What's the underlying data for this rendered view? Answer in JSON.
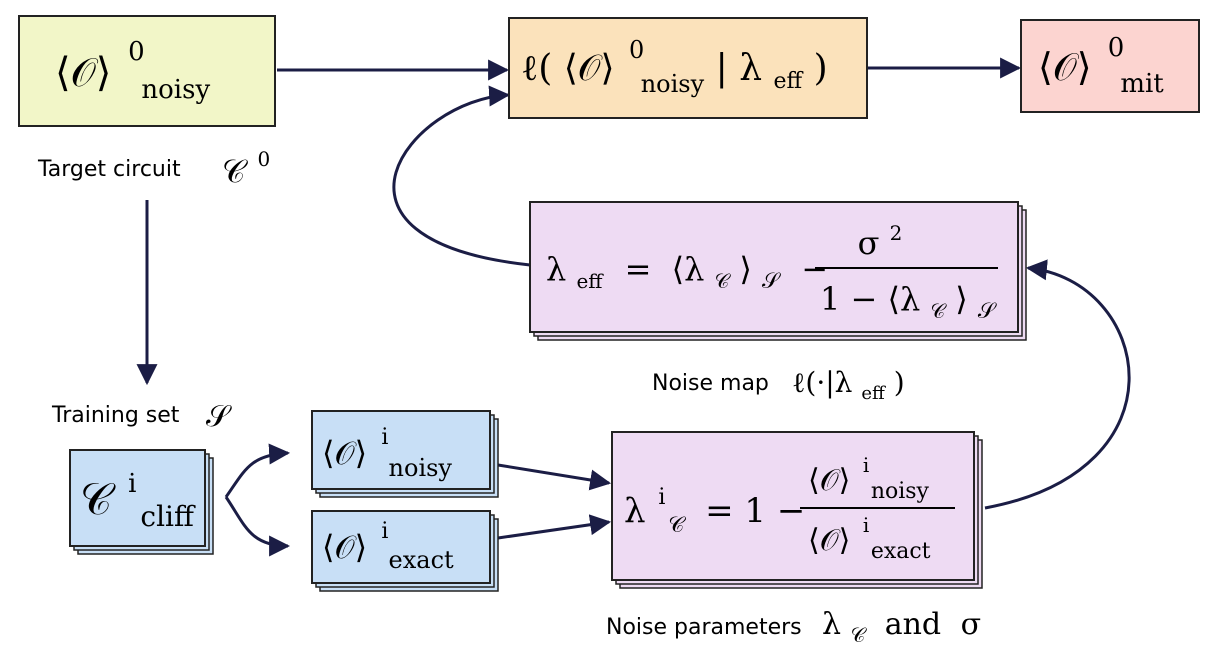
{
  "colors": {
    "arrow": "#1b1d45",
    "yellow_fill": "#f2f6c8",
    "orange_fill": "#fbe2bb",
    "red_fill": "#fcd4d0",
    "purple_fill": "#eedbf3",
    "blue_fill": "#c8dff6",
    "border": "#222222"
  },
  "boxes": {
    "noisy_target": {
      "main": "⟨𝒪⟩",
      "sup": "0",
      "sub": "noisy"
    },
    "map_applied": {
      "open": "ℓ(",
      "obs": "⟨𝒪⟩",
      "sup": "0",
      "sub": "noisy",
      "bar": "|",
      "lambda": "λ",
      "lambda_sub": "eff",
      "close": ")"
    },
    "mitigated": {
      "main": "⟨𝒪⟩",
      "sup": "0",
      "sub": "mit"
    },
    "lambda_eff": {
      "lhs": "λ",
      "lhs_sub": "eff",
      "equals": "=",
      "mean": "⟨λ",
      "mean_sub": "𝒞",
      "mean_close": "⟩",
      "mean_set": "𝒮",
      "minus": "−",
      "num": "σ",
      "num_sup": "2",
      "den_prefix": "1 − ⟨λ",
      "den_sub": "𝒞",
      "den_close": "⟩",
      "den_set": "𝒮"
    },
    "cliff": {
      "main": "𝒞",
      "sup": "i",
      "sub": "cliff"
    },
    "noisy_i": {
      "main": "⟨𝒪⟩",
      "sup": "i",
      "sub": "noisy"
    },
    "exact_i": {
      "main": "⟨𝒪⟩",
      "sup": "i",
      "sub": "exact"
    },
    "lambda_i": {
      "lhs": "λ",
      "lhs_sup": "i",
      "lhs_sub": "𝒞",
      "eq": "= 1 −",
      "num": "⟨𝒪⟩",
      "num_sup": "i",
      "num_sub": "noisy",
      "den": "⟨𝒪⟩",
      "den_sup": "i",
      "den_sub": "exact"
    }
  },
  "labels": {
    "target_circuit": {
      "text": "Target circuit",
      "math": "𝒞",
      "sup": "0"
    },
    "training_set": {
      "text": "Training set",
      "math": "𝒮"
    },
    "noise_map": {
      "text": "Noise map",
      "math_open": "ℓ(·|λ",
      "math_sub": "eff",
      "math_close": ")"
    },
    "noise_params": {
      "text": "Noise parameters",
      "lambda": "λ",
      "lambda_sub": "𝒞",
      "and": "and",
      "sigma": "σ"
    }
  }
}
